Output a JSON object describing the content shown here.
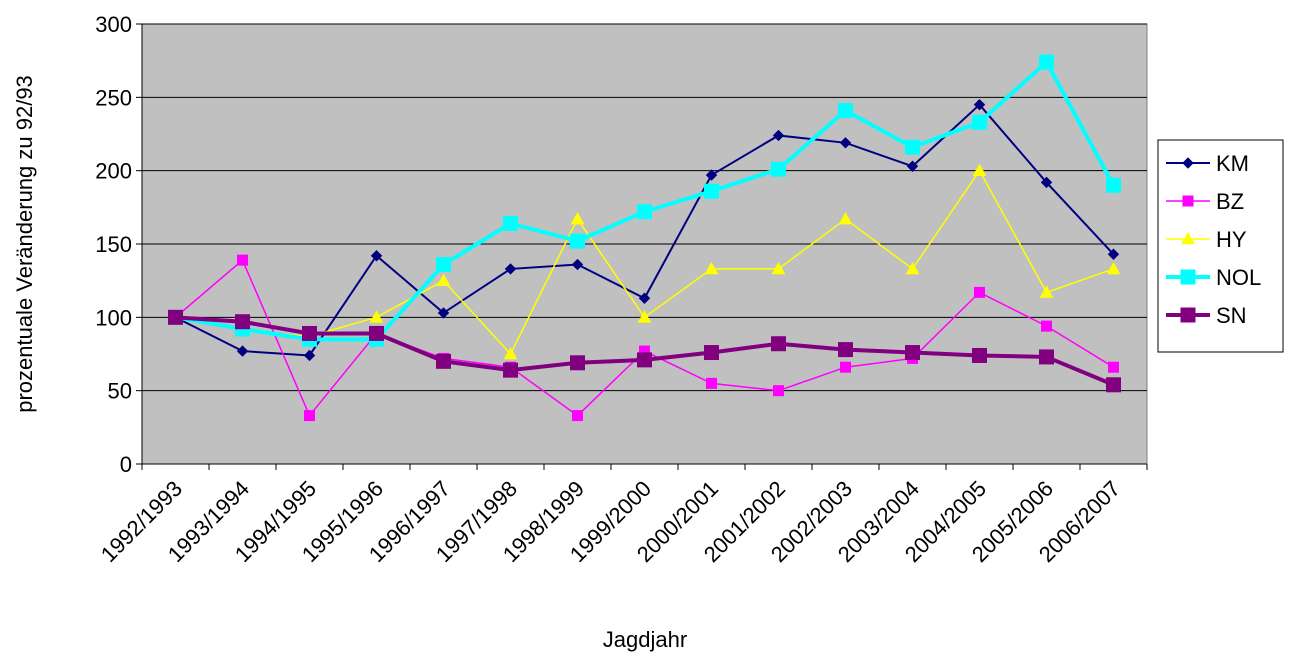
{
  "chart_data": {
    "type": "line",
    "title": "",
    "xlabel": "Jagdjahr",
    "ylabel": "prozentuale Veränderung zu 92/93",
    "ylim": [
      0,
      300
    ],
    "yticks": [
      0,
      50,
      100,
      150,
      200,
      250,
      300
    ],
    "grid": "horizontal",
    "legend_position": "right",
    "plot_background": "#c0c0c0",
    "categories": [
      "1992/1993",
      "1993/1994",
      "1994/1995",
      "1995/1996",
      "1996/1997",
      "1997/1998",
      "1998/1999",
      "1999/2000",
      "2000/2001",
      "2001/2002",
      "2002/2003",
      "2003/2004",
      "2004/2005",
      "2005/2006",
      "2006/2007"
    ],
    "series": [
      {
        "name": "KM",
        "color": "#000080",
        "marker": "diamond",
        "values": [
          100,
          77,
          74,
          142,
          103,
          133,
          136,
          113,
          197,
          224,
          219,
          203,
          245,
          192,
          143
        ]
      },
      {
        "name": "BZ",
        "color": "#ff00ff",
        "marker": "square",
        "values": [
          100,
          139,
          33,
          89,
          72,
          66,
          33,
          77,
          55,
          50,
          66,
          72,
          117,
          94,
          66
        ]
      },
      {
        "name": "HY",
        "color": "#ffff00",
        "marker": "triangle",
        "values": [
          100,
          91,
          87,
          100,
          125,
          75,
          167,
          100,
          133,
          133,
          167,
          133,
          200,
          117,
          133
        ]
      },
      {
        "name": "NOL",
        "color": "#00ffff",
        "marker": "square-large",
        "values": [
          100,
          92,
          85,
          85,
          136,
          164,
          152,
          172,
          186,
          201,
          241,
          216,
          233,
          274,
          190
        ]
      },
      {
        "name": "SN",
        "color": "#800080",
        "marker": "square-large",
        "values": [
          100,
          97,
          89,
          89,
          70,
          64,
          69,
          71,
          76,
          82,
          78,
          76,
          74,
          73,
          54
        ]
      }
    ]
  }
}
